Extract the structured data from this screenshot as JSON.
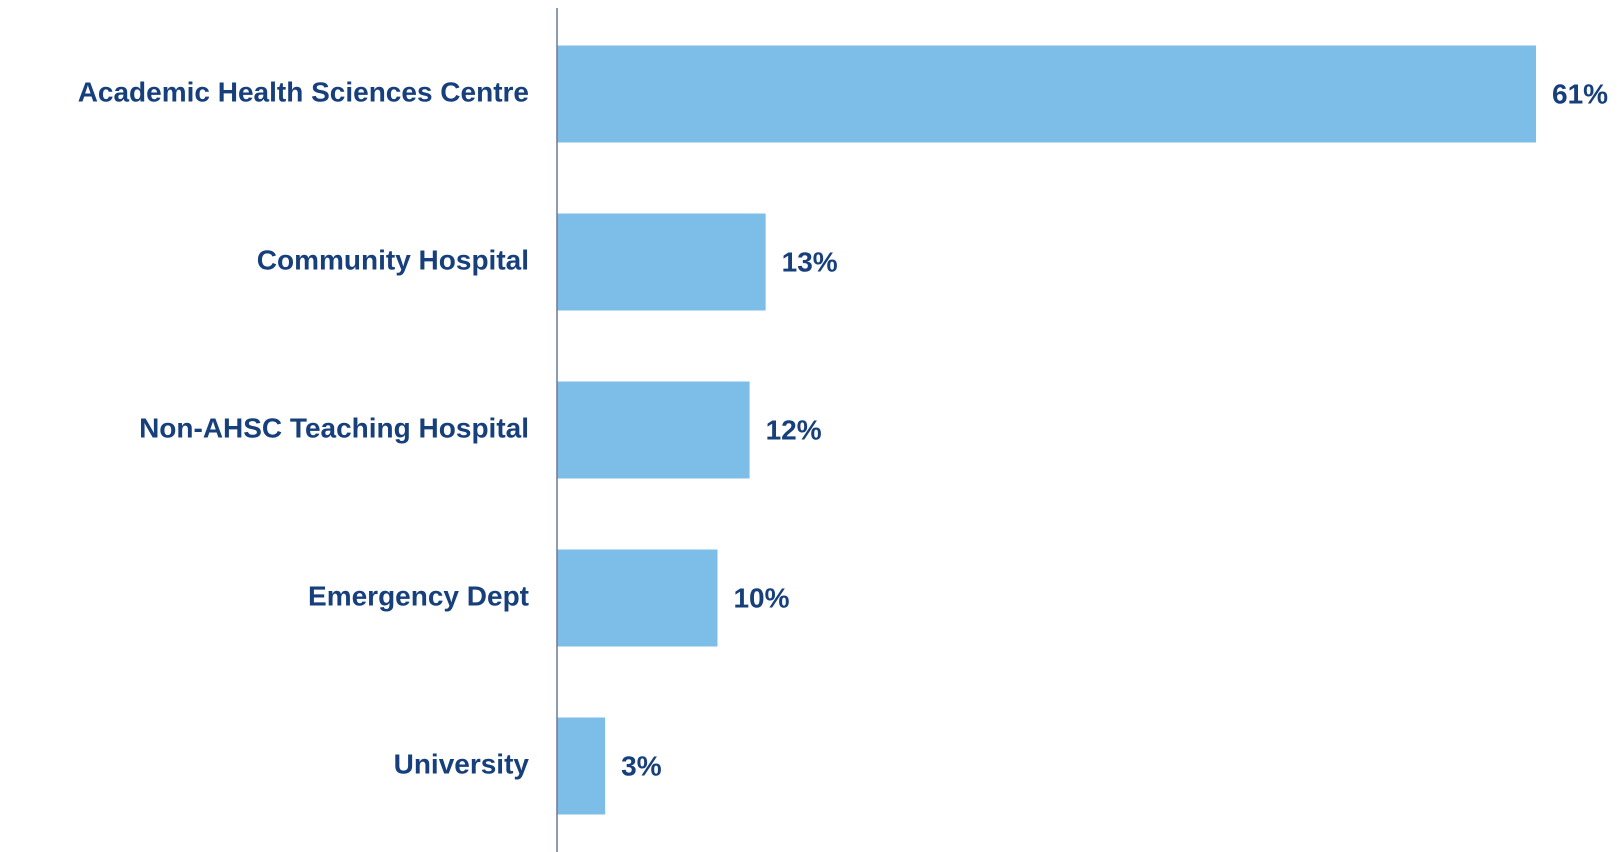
{
  "chart_data": {
    "type": "hbar",
    "categories": [
      "Academic Health Sciences Centre",
      "Community Hospital",
      "Non-AHSC Teaching Hospital",
      "Emergency Dept",
      "University"
    ],
    "values": [
      61,
      13,
      12,
      10,
      3
    ],
    "value_labels": [
      "61%",
      "13%",
      "12%",
      "10%",
      "3%"
    ],
    "color": "#7dbee8"
  }
}
